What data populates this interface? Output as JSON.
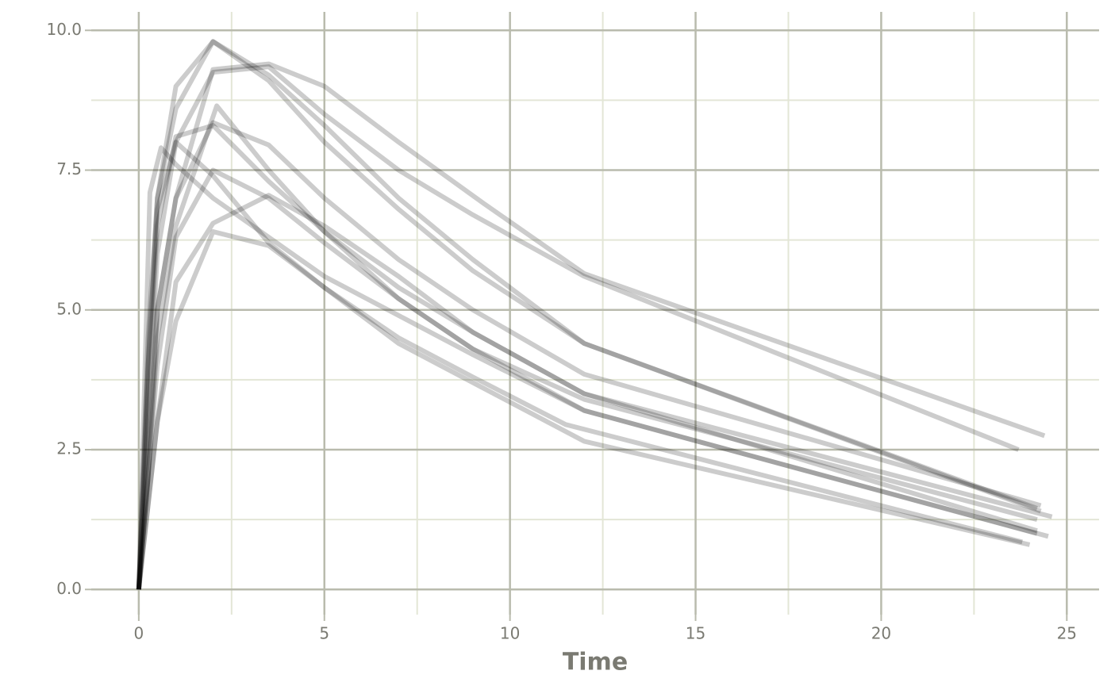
{
  "chart_data": {
    "type": "line",
    "xlabel": "Time",
    "xlim": [
      -1.28,
      25.87
    ],
    "ylim": [
      -0.45,
      10.33
    ],
    "xticks": [
      0,
      5,
      10,
      15,
      20,
      25
    ],
    "yticks": [
      {
        "value": 0,
        "label": "0.0"
      },
      {
        "value": 2.5,
        "label": "2.5"
      },
      {
        "value": 5,
        "label": "5.0"
      },
      {
        "value": 7.5,
        "label": "7.5"
      },
      {
        "value": 10,
        "label": "10.0"
      }
    ],
    "x_minor_ticks": [
      2.5,
      7.5,
      12.5,
      17.5,
      22.5
    ],
    "y_minor_ticks": [
      1.25,
      3.75,
      6.25,
      8.75
    ],
    "grid": true,
    "line_opacity": 0.2,
    "series": [
      {
        "color": "#000000",
        "x": [
          0,
          0.25,
          0.5,
          1,
          2,
          3.5,
          5,
          7,
          9,
          12,
          24.3
        ],
        "values": [
          0,
          4.5,
          7,
          8.6,
          9.8,
          9.1,
          8.0,
          6.8,
          5.7,
          4.4,
          1.4
        ]
      },
      {
        "color": "#000000",
        "x": [
          0,
          0.25,
          0.5,
          1,
          2,
          3.5,
          5,
          7,
          9.3,
          12,
          24.4
        ],
        "values": [
          0,
          2.5,
          5,
          7,
          9.3,
          9.4,
          9.0,
          8.0,
          6.9,
          5.65,
          2.75
        ]
      },
      {
        "color": "#000000",
        "x": [
          0,
          0.25,
          0.5,
          1,
          2,
          3.5,
          5,
          7,
          9,
          12,
          23.7
        ],
        "values": [
          0,
          3,
          6,
          8,
          9.25,
          9.35,
          8.5,
          7.5,
          6.7,
          5.6,
          2.5
        ]
      },
      {
        "color": "#000000",
        "x": [
          0,
          0.25,
          0.5,
          1,
          2,
          3.5,
          5,
          7,
          9,
          12,
          24.3
        ],
        "values": [
          0,
          2,
          5,
          7,
          8.35,
          7.95,
          7.0,
          5.9,
          5.0,
          3.85,
          1.5
        ]
      },
      {
        "color": "#000000",
        "x": [
          0,
          0.25,
          0.5,
          1,
          2,
          3.5,
          5,
          7,
          9,
          12,
          24.6
        ],
        "values": [
          0,
          3.5,
          6.5,
          8.1,
          8.3,
          7.3,
          6.4,
          5.4,
          4.6,
          3.5,
          1.3
        ]
      },
      {
        "color": "#000000",
        "x": [
          0,
          0.3,
          0.6,
          1,
          2,
          3.5,
          5,
          7,
          9,
          12,
          24.2
        ],
        "values": [
          0,
          7.1,
          7.9,
          7.6,
          7.0,
          6.3,
          5.6,
          4.9,
          4.2,
          3.2,
          1.0
        ]
      },
      {
        "color": "#000000",
        "x": [
          0,
          0.25,
          0.5,
          1,
          2.1,
          3.5,
          5,
          7,
          9,
          12,
          24.2
        ],
        "values": [
          0,
          2,
          4.5,
          6.5,
          8.65,
          7.5,
          6.4,
          5.2,
          4.3,
          3.4,
          1.25
        ]
      },
      {
        "color": "#000000",
        "x": [
          0,
          0.25,
          0.5,
          1,
          2,
          3.5,
          5,
          7,
          9,
          12,
          24.5
        ],
        "values": [
          0,
          2,
          4,
          6.3,
          7.5,
          7.0,
          6.2,
          5.2,
          4.3,
          3.2,
          0.95
        ]
      },
      {
        "color": "#000000",
        "x": [
          0,
          0.25,
          0.5,
          1,
          2,
          3.5,
          5,
          7,
          9,
          12,
          24.2
        ],
        "values": [
          0,
          1.5,
          3,
          5.5,
          6.55,
          7.05,
          6.5,
          5.6,
          4.6,
          3.5,
          1.05
        ]
      },
      {
        "color": "#000000",
        "x": [
          0,
          0.25,
          0.5,
          1,
          2,
          3.5,
          5,
          7,
          9,
          12,
          24.0
        ],
        "values": [
          0,
          1.5,
          3,
          4.8,
          6.4,
          6.15,
          5.4,
          4.4,
          3.7,
          2.65,
          0.8
        ]
      },
      {
        "color": "#000000",
        "x": [
          0,
          0.25,
          0.5,
          1,
          2,
          3.5,
          5,
          7,
          9,
          11.5,
          23.8
        ],
        "values": [
          0,
          4,
          6.8,
          8.0,
          7.4,
          6.2,
          5.4,
          4.5,
          3.8,
          2.95,
          0.85
        ]
      },
      {
        "color": "#000000",
        "x": [
          0,
          0.25,
          0.5,
          1,
          2,
          3.5,
          5,
          7,
          9,
          12,
          24.2
        ],
        "values": [
          0,
          4,
          7,
          9.0,
          9.8,
          9.2,
          8.3,
          7.0,
          5.9,
          4.4,
          1.45
        ]
      }
    ]
  }
}
